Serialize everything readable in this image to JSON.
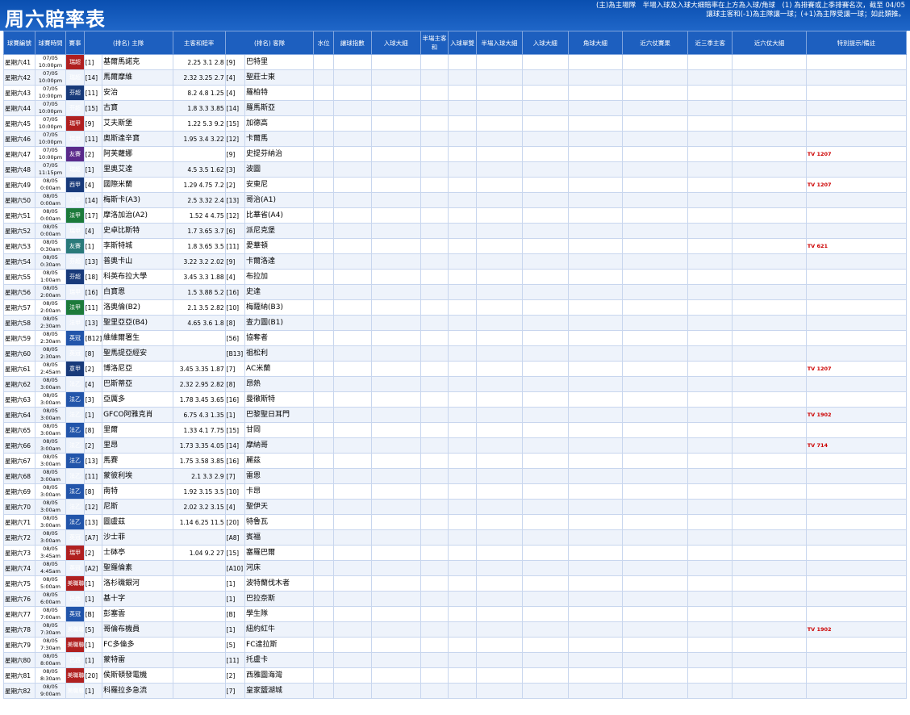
{
  "header": {
    "title": "周六賠率表",
    "note_line1": "(主)為主場隊　半場入球及入球大細賠率在上方為入球/角球　(1) 為排賽或上季排賽名次，截至 04/05",
    "note_line2": "讓球主客和(-1)為主隊讓一球；(+1)為主隊受讓一球；如此類推。",
    "legend": [
      "為異常投注指數場次",
      "為異常事件",
      "為焦點賽事",
      "投注額高於大部分場次",
      "投注額低於一般場次",
      "投注額較少賽事",
      "投注額大幅上升"
    ]
  },
  "columns": [
    "球賽編號",
    "球賽時間",
    "賽事",
    "(排名) 主隊",
    "主客和賠率",
    "(排名) 客隊",
    "水位",
    "讓球指數",
    "入球大細",
    "半場主客和",
    "入球單雙",
    "半場入球大細",
    "入球大細",
    "角球大細",
    "半場主客和",
    "近六仗賽果",
    "近三季主客",
    "近六仗大細",
    "特別提示/備註"
  ],
  "rows": [
    {
      "id": "星期六41",
      "date": "07/05",
      "time": "10:00pm",
      "ev": "瑞超",
      "evc": "red",
      "hr": "[1]",
      "home": "基爾馬諾克",
      "odds": "2.25 3.1 2.8",
      "ar": "[9]",
      "away": "巴特里",
      "tv": ""
    },
    {
      "id": "星期六42",
      "date": "07/05",
      "time": "10:00pm",
      "ev": "瑞超",
      "evc": "red",
      "hr": "[14]",
      "home": "馬爾摩維",
      "odds": "2.32 3.25 2.7",
      "ar": "[4]",
      "away": "聖莊士東",
      "tv": ""
    },
    {
      "id": "星期六43",
      "date": "07/05",
      "time": "10:00pm",
      "ev": "芬超",
      "evc": "navy",
      "hr": "[11]",
      "home": "安治",
      "odds": "8.2 4.8 1.25",
      "ar": "[4]",
      "away": "羅柏特",
      "tv": ""
    },
    {
      "id": "星期六44",
      "date": "07/05",
      "time": "10:00pm",
      "ev": "芬超",
      "evc": "navy",
      "hr": "[15]",
      "home": "古寶",
      "odds": "1.8 3.3 3.85",
      "ar": "[14]",
      "away": "羅馬斯亞",
      "tv": ""
    },
    {
      "id": "星期六45",
      "date": "07/05",
      "time": "10:00pm",
      "ev": "瑞甲",
      "evc": "red",
      "hr": "[9]",
      "home": "艾夫斯堡",
      "odds": "1.22 5.3 9.2",
      "ar": "[15]",
      "away": "加德高",
      "tv": ""
    },
    {
      "id": "星期六46",
      "date": "07/05",
      "time": "10:00pm",
      "ev": "瑞甲",
      "evc": "red",
      "hr": "[11]",
      "home": "奧斯達辛寶",
      "odds": "1.95 3.4 3.22",
      "ar": "[12]",
      "away": "卡爾馬",
      "tv": ""
    },
    {
      "id": "星期六47",
      "date": "07/05",
      "time": "10:00pm",
      "ev": "友賽",
      "evc": "purple",
      "hr": "[2]",
      "home": "阿芙蘿娜",
      "odds": "",
      "ar": "[9]",
      "away": "史提芬納治",
      "tv": "1207"
    },
    {
      "id": "星期六48",
      "date": "07/05",
      "time": "11:15pm",
      "ev": "瑞超",
      "evc": "red",
      "hr": "[1]",
      "home": "里奧艾達",
      "odds": "4.5 3.5 1.62",
      "ar": "[3]",
      "away": "波圖",
      "tv": ""
    },
    {
      "id": "星期六49",
      "date": "08/05",
      "time": "0:00am",
      "ev": "西甲",
      "evc": "navy",
      "hr": "[4]",
      "home": "國際米蘭",
      "odds": "1.29 4.75 7.2",
      "ar": "[2]",
      "away": "安東尼",
      "tv": "1207"
    },
    {
      "id": "星期六50",
      "date": "08/05",
      "time": "0:00am",
      "ev": "法甲",
      "evc": "green",
      "hr": "[14]",
      "home": "梅斯卡(A3)",
      "odds": "2.5 3.32 2.4",
      "ar": "[13]",
      "away": "哥治(A1)",
      "tv": ""
    },
    {
      "id": "星期六51",
      "date": "08/05",
      "time": "0:00am",
      "ev": "法甲",
      "evc": "green",
      "hr": "[17]",
      "home": "摩洛加治(A2)",
      "odds": "1.52 4 4.75",
      "ar": "[12]",
      "away": "比華省(A4)",
      "tv": ""
    },
    {
      "id": "星期六52",
      "date": "08/05",
      "time": "0:00am",
      "ev": "瑞甲",
      "evc": "red",
      "hr": "[4]",
      "home": "史卓比斯特",
      "odds": "1.7 3.65 3.7",
      "ar": "[6]",
      "away": "派尼克堡",
      "tv": ""
    },
    {
      "id": "星期六53",
      "date": "08/05",
      "time": "0:30am",
      "ev": "友賽",
      "evc": "teal",
      "hr": "[1]",
      "home": "李斯特城",
      "odds": "1.8 3.65 3.5",
      "ar": "[11]",
      "away": "愛華頓",
      "tv": "621"
    },
    {
      "id": "星期六54",
      "date": "08/05",
      "time": "0:30am",
      "ev": "芬超",
      "evc": "navy",
      "hr": "[13]",
      "home": "普奧卡山",
      "odds": "3.22 3.2 2.02",
      "ar": "[9]",
      "away": "卡爾洛達",
      "tv": ""
    },
    {
      "id": "星期六55",
      "date": "08/05",
      "time": "1:00am",
      "ev": "芬超",
      "evc": "navy",
      "hr": "[18]",
      "home": "科英布拉大學",
      "odds": "3.45 3.3 1.88",
      "ar": "[4]",
      "away": "布拉加",
      "tv": ""
    },
    {
      "id": "星期六56",
      "date": "08/05",
      "time": "2:00am",
      "ev": "瑞甲",
      "evc": "red",
      "hr": "[16]",
      "home": "白寶恩",
      "odds": "1.5 3.88 5.2",
      "ar": "[16]",
      "away": "史達",
      "tv": ""
    },
    {
      "id": "星期六57",
      "date": "08/05",
      "time": "2:00am",
      "ev": "法甲",
      "evc": "green",
      "hr": "[11]",
      "home": "洛奧倫(B2)",
      "odds": "2.1 3.5 2.82",
      "ar": "[10]",
      "away": "梅薩納(B3)",
      "tv": ""
    },
    {
      "id": "星期六58",
      "date": "08/05",
      "time": "2:30am",
      "ev": "法甲",
      "evc": "green",
      "hr": "[13]",
      "home": "聖里亞亞(B4)",
      "odds": "4.65 3.6 1.8",
      "ar": "[8]",
      "away": "查力圖(B1)",
      "tv": ""
    },
    {
      "id": "星期六59",
      "date": "08/05",
      "time": "2:30am",
      "ev": "英冠",
      "evc": "blue",
      "hr": "[B12]",
      "home": "維維爾署生",
      "odds": "",
      "ar": "[56]",
      "away": "協奪者",
      "tv": ""
    },
    {
      "id": "星期六60",
      "date": "08/05",
      "time": "2:30am",
      "ev": "英冠",
      "evc": "blue",
      "hr": "[8]",
      "home": "聖馬提亞經安",
      "odds": "",
      "ar": "[B13]",
      "away": "祖松利",
      "tv": ""
    },
    {
      "id": "星期六61",
      "date": "08/05",
      "time": "2:45am",
      "ev": "意甲",
      "evc": "navy",
      "hr": "[2]",
      "home": "博洛尼亞",
      "odds": "3.45 3.35 1.87",
      "ar": "[7]",
      "away": "AC米蘭",
      "tv": "1207"
    },
    {
      "id": "星期六62",
      "date": "08/05",
      "time": "3:00am",
      "ev": "法乙",
      "evc": "blue",
      "hr": "[4]",
      "home": "巴斯蒂亞",
      "odds": "2.32 2.95 2.82",
      "ar": "[8]",
      "away": "昂熱",
      "tv": ""
    },
    {
      "id": "星期六63",
      "date": "08/05",
      "time": "3:00am",
      "ev": "法乙",
      "evc": "blue",
      "hr": "[3]",
      "home": "亞厲多",
      "odds": "1.78 3.45 3.65",
      "ar": "[16]",
      "away": "曼徹斯特",
      "tv": ""
    },
    {
      "id": "星期六64",
      "date": "08/05",
      "time": "3:00am",
      "ev": "法乙",
      "evc": "blue",
      "hr": "[1]",
      "home": "GFCO阿雅克肖",
      "odds": "6.75 4.3 1.35",
      "ar": "[1]",
      "away": "巴黎聖日耳門",
      "tv": "1902"
    },
    {
      "id": "星期六65",
      "date": "08/05",
      "time": "3:00am",
      "ev": "法乙",
      "evc": "blue",
      "hr": "[8]",
      "home": "里爾",
      "odds": "1.33 4.1 7.75",
      "ar": "[15]",
      "away": "甘岡",
      "tv": ""
    },
    {
      "id": "星期六66",
      "date": "08/05",
      "time": "3:00am",
      "ev": "法乙",
      "evc": "blue",
      "hr": "[2]",
      "home": "里昂",
      "odds": "1.73 3.35 4.05",
      "ar": "[14]",
      "away": "摩納哥",
      "tv": "714"
    },
    {
      "id": "星期六67",
      "date": "08/05",
      "time": "3:00am",
      "ev": "法乙",
      "evc": "blue",
      "hr": "[13]",
      "home": "馬賽",
      "odds": "1.75 3.58 3.85",
      "ar": "[16]",
      "away": "麗茲",
      "tv": ""
    },
    {
      "id": "星期六68",
      "date": "08/05",
      "time": "3:00am",
      "ev": "法乙",
      "evc": "blue",
      "hr": "[11]",
      "home": "蒙彼利埃",
      "odds": "2.1 3.3 2.9",
      "ar": "[7]",
      "away": "雷恩",
      "tv": ""
    },
    {
      "id": "星期六69",
      "date": "08/05",
      "time": "3:00am",
      "ev": "法乙",
      "evc": "blue",
      "hr": "[8]",
      "home": "南特",
      "odds": "1.92 3.15 3.5",
      "ar": "[10]",
      "away": "卡昂",
      "tv": ""
    },
    {
      "id": "星期六70",
      "date": "08/05",
      "time": "3:00am",
      "ev": "法乙",
      "evc": "blue",
      "hr": "[12]",
      "home": "尼斯",
      "odds": "2.02 3.2 3.15",
      "ar": "[4]",
      "away": "聖伊天",
      "tv": ""
    },
    {
      "id": "星期六71",
      "date": "08/05",
      "time": "3:00am",
      "ev": "法乙",
      "evc": "blue",
      "hr": "[13]",
      "home": "圖盧茲",
      "odds": "1.14 6.25 11.5",
      "ar": "[20]",
      "away": "特魯瓦",
      "tv": ""
    },
    {
      "id": "星期六72",
      "date": "08/05",
      "time": "3:00am",
      "ev": "英冠",
      "evc": "blue",
      "hr": "[A7]",
      "home": "沙士菲",
      "odds": "",
      "ar": "[A8]",
      "away": "賓福",
      "tv": ""
    },
    {
      "id": "星期六73",
      "date": "08/05",
      "time": "3:45am",
      "ev": "瑞甲",
      "evc": "red",
      "hr": "[2]",
      "home": "士砵亭",
      "odds": "1.04 9.2 27",
      "ar": "[15]",
      "away": "塞羅巴爾",
      "tv": ""
    },
    {
      "id": "星期六74",
      "date": "08/05",
      "time": "4:45am",
      "ev": "英冠",
      "evc": "blue",
      "hr": "[A2]",
      "home": "聖羅倫素",
      "odds": "",
      "ar": "[A10]",
      "away": "河床",
      "tv": ""
    },
    {
      "id": "星期六75",
      "date": "08/05",
      "time": "5:00am",
      "ev": "美職聯",
      "evc": "red",
      "hr": "[1]",
      "home": "洛杉磯銀河",
      "odds": "",
      "ar": "[1]",
      "away": "波特蘭伐木者",
      "tv": ""
    },
    {
      "id": "星期六76",
      "date": "08/05",
      "time": "6:00am",
      "ev": "巴西",
      "evc": "purple",
      "hr": "[1]",
      "home": "基十字",
      "odds": "",
      "ar": "[1]",
      "away": "巴拉奈斯",
      "tv": ""
    },
    {
      "id": "星期六77",
      "date": "08/05",
      "time": "7:00am",
      "ev": "英冠",
      "evc": "blue",
      "hr": "[B]",
      "home": "彭塞雲",
      "odds": "",
      "ar": "[B]",
      "away": "學生隊",
      "tv": ""
    },
    {
      "id": "星期六78",
      "date": "08/05",
      "time": "7:30am",
      "ev": "美職聯",
      "evc": "red",
      "hr": "[5]",
      "home": "哥倫布機員",
      "odds": "",
      "ar": "[1]",
      "away": "紐約紅牛",
      "tv": "1902"
    },
    {
      "id": "星期六79",
      "date": "08/05",
      "time": "7:30am",
      "ev": "美職聯",
      "evc": "red",
      "hr": "[1]",
      "home": "FC多倫多",
      "odds": "",
      "ar": "[5]",
      "away": "FC達拉斯",
      "tv": ""
    },
    {
      "id": "星期六80",
      "date": "08/05",
      "time": "8:00am",
      "ev": "巴西",
      "evc": "purple",
      "hr": "[1]",
      "home": "蒙特雷",
      "odds": "",
      "ar": "[11]",
      "away": "托盧卡",
      "tv": ""
    },
    {
      "id": "星期六81",
      "date": "08/05",
      "time": "8:30am",
      "ev": "美職聯",
      "evc": "red",
      "hr": "[20]",
      "home": "侯斯頓發電機",
      "odds": "",
      "ar": "[2]",
      "away": "西雅圖海灣",
      "tv": ""
    },
    {
      "id": "星期六82",
      "date": "08/05",
      "time": "9:00am",
      "ev": "美職聯",
      "evc": "red",
      "hr": "[1]",
      "home": "科羅拉多急流",
      "odds": "",
      "ar": "[7]",
      "away": "皇家鹽湖城",
      "tv": ""
    }
  ]
}
